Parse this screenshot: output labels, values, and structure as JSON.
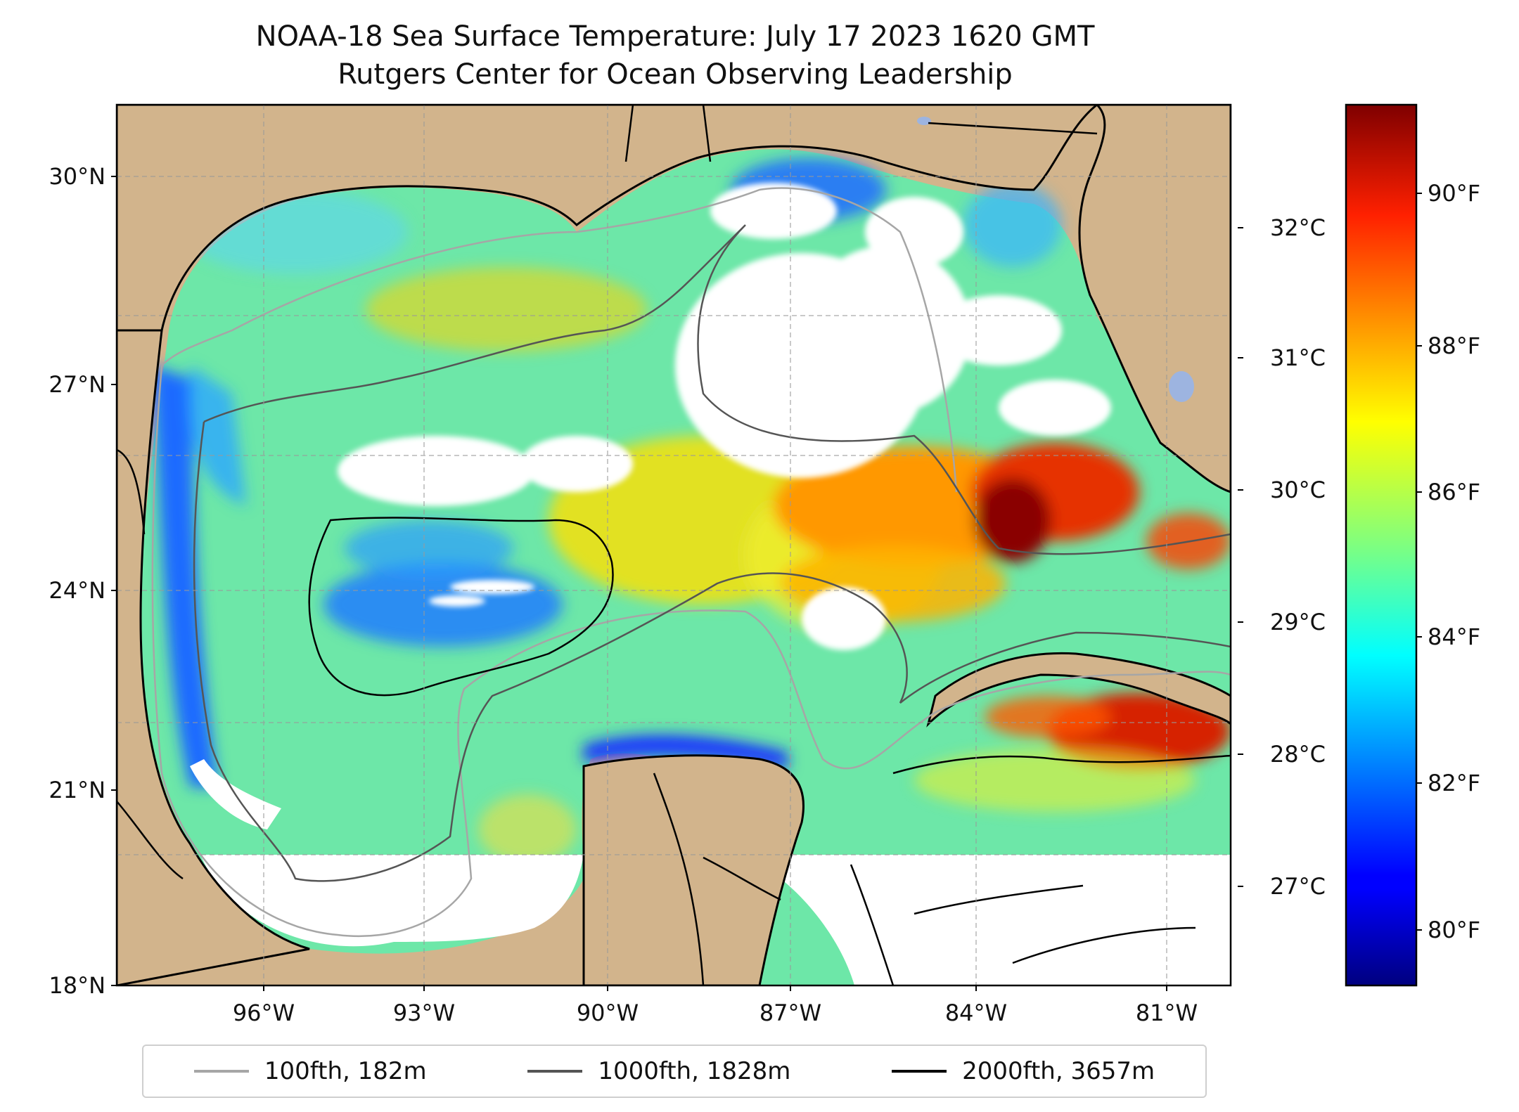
{
  "title": {
    "line1": "NOAA-18 Sea Surface Temperature: July 17 2023 1620 GMT",
    "line2": "Rutgers Center for Ocean Observing Leadership"
  },
  "map": {
    "region": "Gulf of Mexico",
    "lon_range_deg": [
      -98,
      -80
    ],
    "lat_range_deg": [
      18,
      31
    ],
    "lat_tick_labels": [
      "30°N",
      "27°N",
      "24°N",
      "21°N",
      "18°N"
    ],
    "lon_tick_labels": [
      "96°W",
      "93°W",
      "90°W",
      "87°W",
      "84°W",
      "81°W"
    ],
    "gridlines": true,
    "colors": {
      "land": "#d2b48c",
      "lakes": "#9db4e0",
      "no_data": "#ffffff",
      "coastline": "#000000"
    }
  },
  "colorbar": {
    "colormap": "jet",
    "celsius_ticks": [
      "32°C",
      "31°C",
      "30°C",
      "29°C",
      "28°C",
      "27°C"
    ],
    "fahrenheit_ticks": [
      "90°F",
      "88°F",
      "86°F",
      "84°F",
      "82°F",
      "80°F"
    ],
    "range_f": [
      79.2,
      91.4
    ]
  },
  "legend": {
    "placement": "bottom",
    "entries": [
      {
        "label": "100fth, 182m",
        "color": "#a6a6a6"
      },
      {
        "label": "1000fth, 1828m",
        "color": "#555555"
      },
      {
        "label": "2000fth, 3657m",
        "color": "#000000"
      }
    ]
  }
}
